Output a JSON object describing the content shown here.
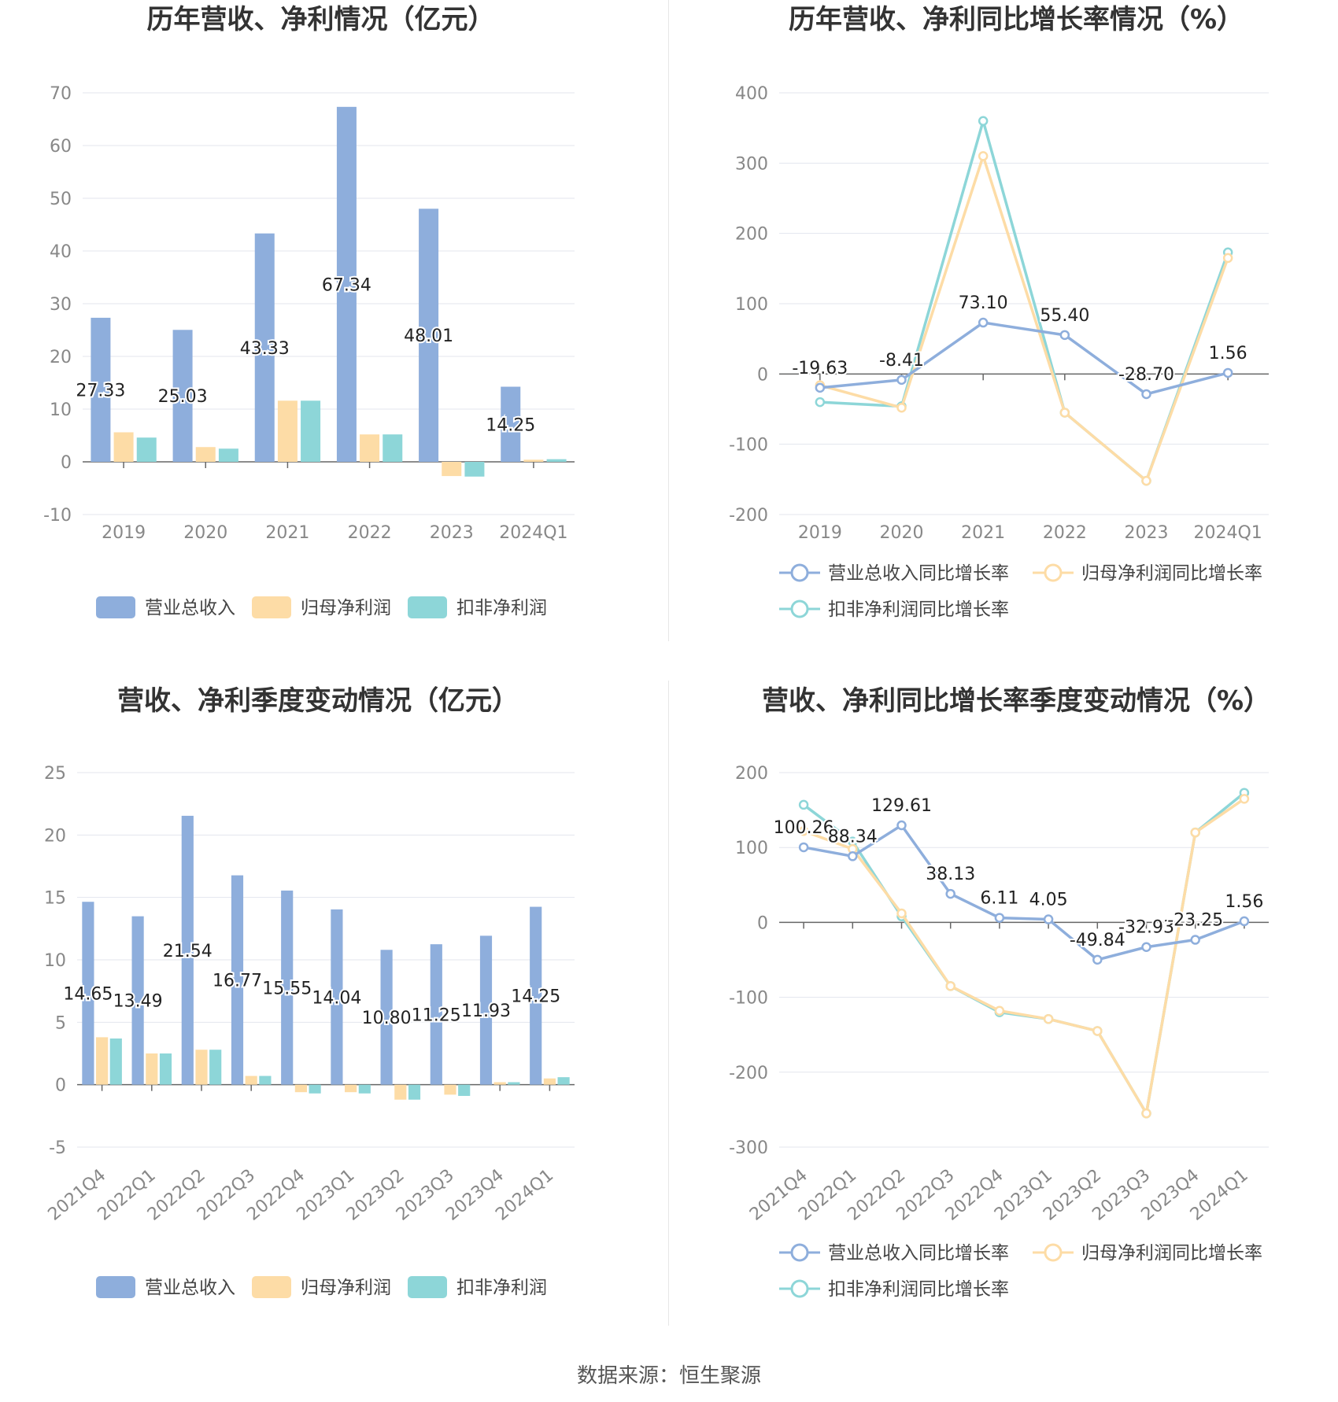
{
  "source_label": "数据来源：恒生聚源",
  "colors": {
    "revenue": "#8eaedc",
    "net_profit": "#fddca6",
    "deducted": "#8dd6d8"
  },
  "chart_data": [
    {
      "type": "bar",
      "title": "历年营收、净利情况（亿元）",
      "categories": [
        "2019",
        "2020",
        "2021",
        "2022",
        "2023",
        "2024Q1"
      ],
      "ylim": [
        -10,
        70
      ],
      "yticks": [
        -10,
        0,
        10,
        20,
        30,
        40,
        50,
        60,
        70
      ],
      "grid": true,
      "legend_position": "bottom",
      "series": [
        {
          "name": "营业总收入",
          "values": [
            27.33,
            25.03,
            43.33,
            67.34,
            48.01,
            14.25
          ],
          "labels": [
            "27.33",
            "25.03",
            "43.33",
            "67.34",
            "48.01",
            "14.25"
          ]
        },
        {
          "name": "归母净利润",
          "values": [
            5.6,
            2.8,
            11.6,
            5.2,
            -2.7,
            0.4
          ]
        },
        {
          "name": "扣非净利润",
          "values": [
            4.6,
            2.5,
            11.6,
            5.2,
            -2.8,
            0.5
          ]
        }
      ]
    },
    {
      "type": "line",
      "title": "历年营收、净利同比增长率情况（%）",
      "categories": [
        "2019",
        "2020",
        "2021",
        "2022",
        "2023",
        "2024Q1"
      ],
      "ylim": [
        -200,
        400
      ],
      "yticks": [
        -200,
        -100,
        0,
        100,
        200,
        300,
        400
      ],
      "grid": true,
      "legend_position": "bottom",
      "series": [
        {
          "name": "营业总收入同比增长率",
          "values": [
            -19.63,
            -8.41,
            73.1,
            55.4,
            -28.7,
            1.56
          ],
          "labels": [
            "-19.63",
            "-8.41",
            "73.10",
            "55.40",
            "-28.70",
            "1.56"
          ]
        },
        {
          "name": "归母净利润同比增长率",
          "values": [
            -16,
            -48,
            310,
            -55,
            -152,
            165
          ]
        },
        {
          "name": "扣非净利润同比增长率",
          "values": [
            -40,
            -46,
            360,
            -55,
            -152,
            173
          ]
        }
      ]
    },
    {
      "type": "bar",
      "title": "营收、净利季度变动情况（亿元）",
      "categories": [
        "2021Q4",
        "2022Q1",
        "2022Q2",
        "2022Q3",
        "2022Q4",
        "2023Q1",
        "2023Q2",
        "2023Q3",
        "2023Q4",
        "2024Q1"
      ],
      "ylim": [
        -5,
        25
      ],
      "yticks": [
        -5,
        0,
        5,
        10,
        15,
        20,
        25
      ],
      "grid": true,
      "legend_position": "bottom",
      "series": [
        {
          "name": "营业总收入",
          "values": [
            14.65,
            13.49,
            21.54,
            16.77,
            15.55,
            14.04,
            10.8,
            11.25,
            11.93,
            14.25
          ],
          "labels": [
            "14.65",
            "13.49",
            "21.54",
            "16.77",
            "15.55",
            "14.04",
            "10.80",
            "11.25",
            "11.93",
            "14.25"
          ]
        },
        {
          "name": "归母净利润",
          "values": [
            3.8,
            2.5,
            2.8,
            0.7,
            -0.6,
            -0.6,
            -1.2,
            -0.8,
            0.2,
            0.5
          ]
        },
        {
          "name": "扣非净利润",
          "values": [
            3.7,
            2.5,
            2.8,
            0.7,
            -0.7,
            -0.7,
            -1.2,
            -0.9,
            0.2,
            0.6
          ]
        }
      ]
    },
    {
      "type": "line",
      "title": "营收、净利同比增长率季度变动情况（%）",
      "categories": [
        "2021Q4",
        "2022Q1",
        "2022Q2",
        "2022Q3",
        "2022Q4",
        "2023Q1",
        "2023Q2",
        "2023Q3",
        "2023Q4",
        "2024Q1"
      ],
      "ylim": [
        -300,
        200
      ],
      "yticks": [
        -300,
        -200,
        -100,
        0,
        100,
        200
      ],
      "grid": true,
      "legend_position": "bottom",
      "series": [
        {
          "name": "营业总收入同比增长率",
          "values": [
            100.26,
            88.34,
            129.61,
            38.13,
            6.11,
            4.05,
            -49.84,
            -32.93,
            -23.25,
            1.56
          ],
          "labels": [
            "100.26",
            "88.34",
            "129.61",
            "38.13",
            "6.11",
            "4.05",
            "-49.84",
            "-32.93",
            "-23.25",
            "1.56"
          ]
        },
        {
          "name": "归母净利润同比增长率",
          "values": [
            122,
            98,
            12,
            -85,
            -118,
            -129,
            -145,
            -255,
            120,
            165
          ]
        },
        {
          "name": "扣非净利润同比增长率",
          "values": [
            157,
            108,
            8,
            -85,
            -120,
            -129,
            -145,
            -255,
            120,
            173
          ]
        }
      ]
    }
  ]
}
